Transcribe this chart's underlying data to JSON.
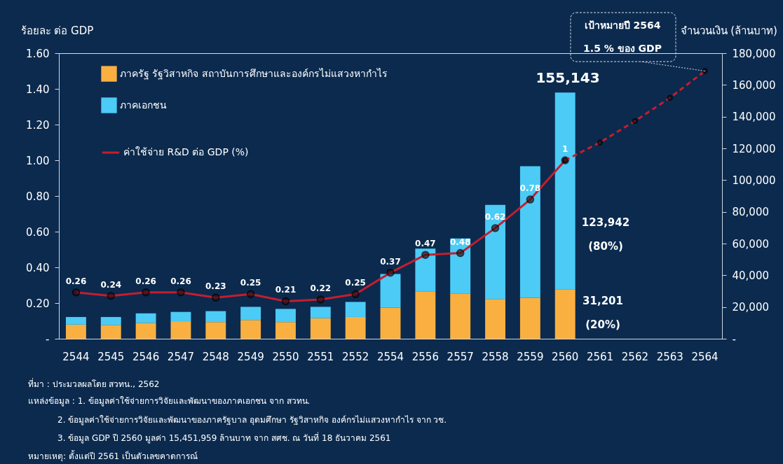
{
  "chart_data": {
    "type": "bar",
    "ylabel": "ร้อยละ ต่อ GDP",
    "y2label": "จำนวนเงิน (ล้านบาท)",
    "categories": [
      "2544",
      "2545",
      "2546",
      "2547",
      "2548",
      "2549",
      "2550",
      "2551",
      "2552",
      "2554",
      "2556",
      "2557",
      "2558",
      "2559",
      "2560",
      "2561",
      "2562",
      "2563",
      "2564"
    ],
    "stacked": true,
    "series": [
      {
        "name": "ภาครัฐ รัฐวิสาหกิจ สถาบันการศึกษาและองค์กรไม่แสวงหากำไร",
        "axis": "y2",
        "color": "#f9b041",
        "values": [
          8900,
          8700,
          10000,
          11000,
          10500,
          11800,
          10500,
          12900,
          13700,
          19600,
          29900,
          28600,
          25000,
          25800,
          31201,
          null,
          null,
          null,
          null
        ]
      },
      {
        "name": "ภาคเอกชน",
        "axis": "y2",
        "color": "#4ccbf6",
        "values": [
          4800,
          5000,
          6000,
          5900,
          6900,
          8300,
          8300,
          7200,
          9500,
          21200,
          26900,
          34600,
          59400,
          83000,
          123942,
          null,
          null,
          null,
          null
        ]
      },
      {
        "name": "ค่าใช้จ่าย R&D ต่อ GDP (%)",
        "type": "line",
        "axis": "y",
        "color": "#c41e2e",
        "line_style": "solid",
        "values": [
          0.26,
          0.24,
          0.26,
          0.26,
          0.23,
          0.25,
          0.21,
          0.22,
          0.25,
          0.37,
          0.47,
          0.48,
          0.62,
          0.78,
          1,
          null,
          null,
          null,
          null
        ],
        "value_labels": [
          "0.26",
          "0.24",
          "0.26",
          "0.26",
          "0.23",
          "0.25",
          "0.21",
          "0.22",
          "0.25",
          "0.37",
          "0.47",
          "0.48",
          "0.62",
          "0.78",
          "1",
          null,
          null,
          null,
          null
        ]
      },
      {
        "type": "line",
        "axis": "y",
        "color": "#c41e2e",
        "line_style": "dashed",
        "values": [
          null,
          null,
          null,
          null,
          null,
          null,
          null,
          null,
          null,
          null,
          null,
          null,
          null,
          null,
          1,
          1.1,
          1.22,
          1.35,
          1.5
        ]
      }
    ],
    "marker": "circle",
    "ylim": [
      0,
      1.6
    ],
    "yticks": [
      {
        "value": 0,
        "label": "-"
      },
      {
        "value": 0.2,
        "label": "0.20"
      },
      {
        "value": 0.4,
        "label": "0.40"
      },
      {
        "value": 0.6,
        "label": "0.60"
      },
      {
        "value": 0.8,
        "label": "0.80"
      },
      {
        "value": 1.0,
        "label": "1.00"
      },
      {
        "value": 1.2,
        "label": "1.20"
      },
      {
        "value": 1.4,
        "label": "1.40"
      },
      {
        "value": 1.6,
        "label": "1.60"
      }
    ],
    "y2lim": [
      0,
      180000
    ],
    "y2ticks": [
      {
        "value": 0,
        "label": "-"
      },
      {
        "value": 20000,
        "label": "20,000"
      },
      {
        "value": 40000,
        "label": "40,000"
      },
      {
        "value": 60000,
        "label": "60,000"
      },
      {
        "value": 80000,
        "label": "80,000"
      },
      {
        "value": 100000,
        "label": "100,000"
      },
      {
        "value": 120000,
        "label": "120,000"
      },
      {
        "value": 140000,
        "label": "140,000"
      },
      {
        "value": 160000,
        "label": "160,000"
      },
      {
        "value": 180000,
        "label": "180,000"
      }
    ],
    "legend": "top left",
    "grid": false,
    "annotations": [
      "155,143",
      "123,942",
      "(80%)",
      "31,201",
      "(20%)",
      "เป้าหมายปี 2564",
      {
        "text": "1.5 % ของ GDP",
        "x": "2564",
        "y": 1.5
      },
      "ที่มา : ประมวลผลโดย สวทน., 2562",
      "แหล่งข้อมูล : 1. ข้อมูลค่าใช้จ่ายการวิจัยและพัฒนาของภาคเอกชน จาก สวทน.",
      "2. ข้อมูลค่าใช้จ่ายการวิจัยและพัฒนาของภาครัฐบาล อุดมศึกษา รัฐวิสาหกิจ องค์กรไม่แสวงหากำไร จาก วช.",
      "3. ข้อมูล GDP ปี 2560 มูลค่า 15,451,959 ล้านบาท  จาก สศช. ณ วันที่ 18 ธันวาคม 2561",
      "หมายเหตุ: ตั้งแต่ปี 2561 เป็นตัวเลขคาดการณ์"
    ]
  }
}
